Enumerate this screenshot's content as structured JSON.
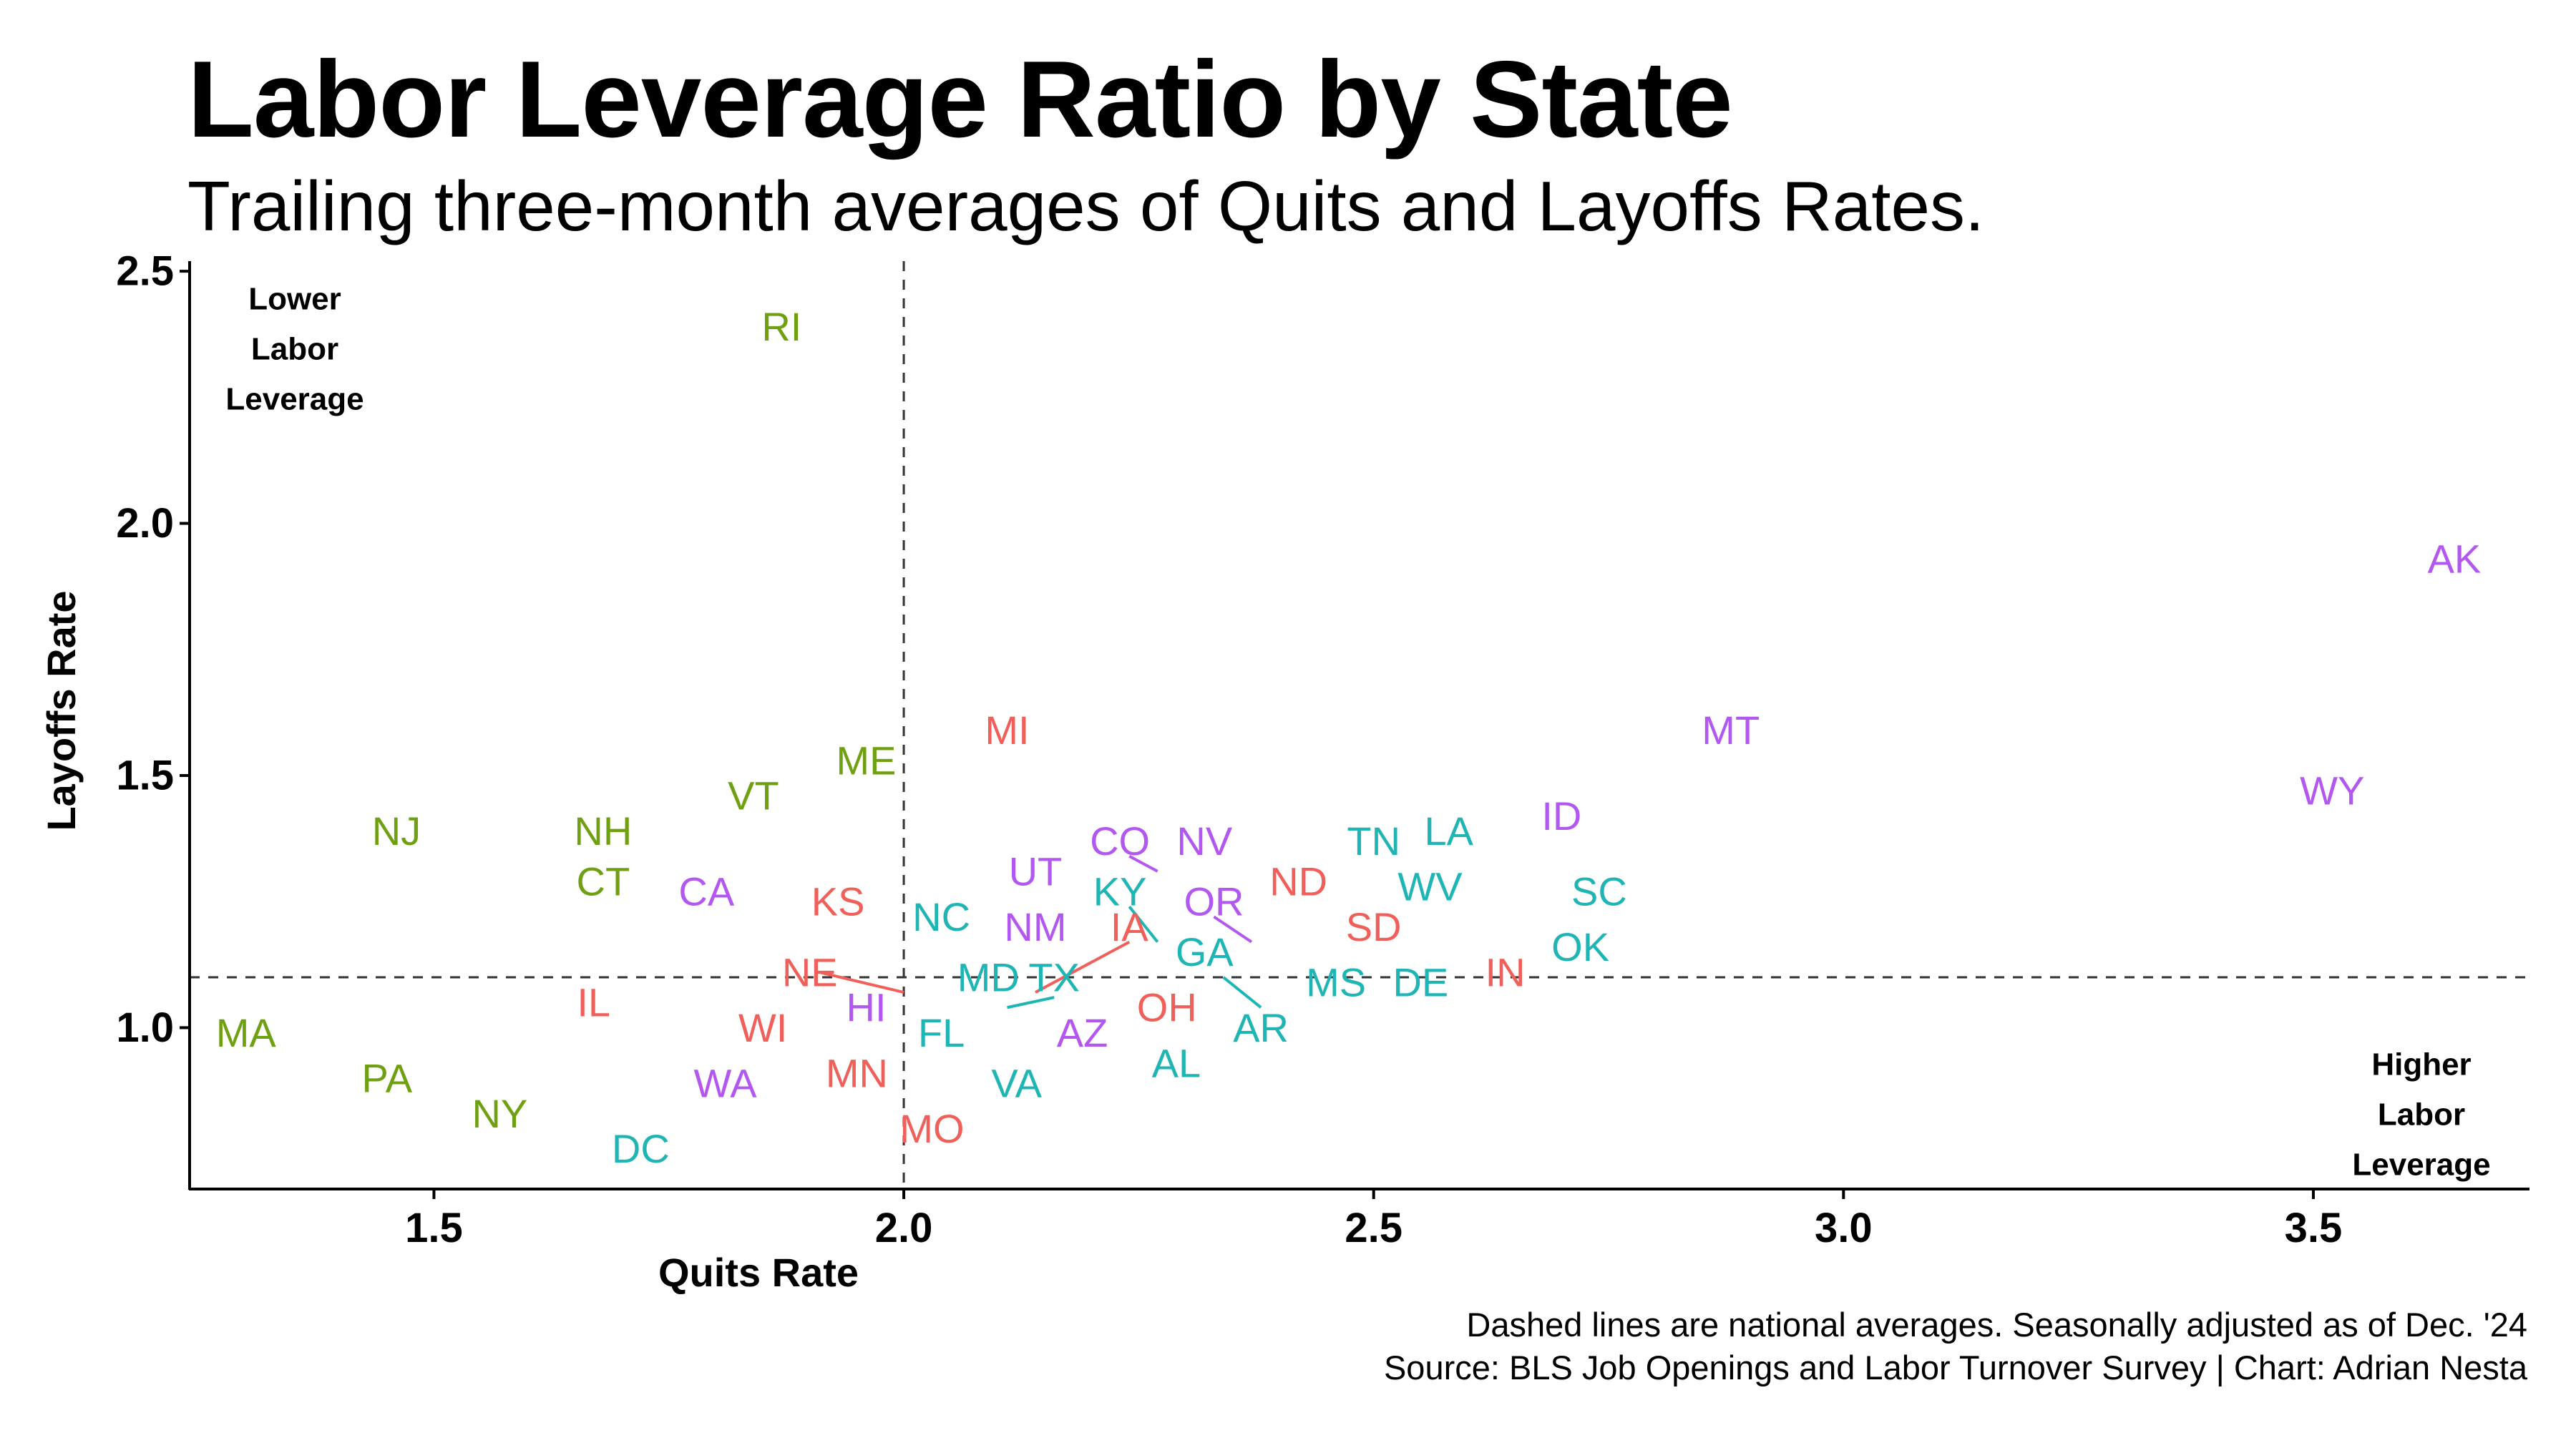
{
  "title": "Labor Leverage Ratio by State",
  "subtitle": "Trailing three-month averages of Quits and Layoffs Rates.",
  "caption": {
    "line1": "Dashed lines are national averages. Seasonally adjusted as of Dec. '24",
    "line2": "Source: BLS Job Openings and Labor Turnover Survey | Chart: Adrian Nesta"
  },
  "quadrant_labels": {
    "top_left": [
      "Lower",
      "Labor",
      "Leverage"
    ],
    "bottom_right": [
      "Higher",
      "Labor",
      "Leverage"
    ]
  },
  "colors": {
    "red": "#F0605A",
    "green": "#6FA012",
    "teal": "#1FB5B5",
    "purple": "#B258F0"
  },
  "chart_data": {
    "type": "scatter",
    "xlabel": "Quits Rate",
    "ylabel": "Layoffs Rate",
    "xlim": [
      1.24,
      3.73
    ],
    "ylim": [
      0.68,
      2.52
    ],
    "x_ticks": [
      "1.5",
      "2.0",
      "2.5",
      "3.0",
      "3.5"
    ],
    "y_ticks": [
      "1.0",
      "1.5",
      "2.0",
      "2.5"
    ],
    "reference_lines": {
      "x": 2.0,
      "y": 1.1
    },
    "points": [
      {
        "label": "RI",
        "x": 1.87,
        "y": 2.39,
        "color": "green"
      },
      {
        "label": "AK",
        "x": 3.65,
        "y": 1.93,
        "color": "purple"
      },
      {
        "label": "MI",
        "x": 2.11,
        "y": 1.59,
        "color": "red"
      },
      {
        "label": "MT",
        "x": 2.88,
        "y": 1.59,
        "color": "purple"
      },
      {
        "label": "ME",
        "x": 1.96,
        "y": 1.53,
        "color": "green"
      },
      {
        "label": "VT",
        "x": 1.84,
        "y": 1.46,
        "color": "green"
      },
      {
        "label": "WY",
        "x": 3.52,
        "y": 1.47,
        "color": "purple"
      },
      {
        "label": "ID",
        "x": 2.7,
        "y": 1.42,
        "color": "purple"
      },
      {
        "label": "NJ",
        "x": 1.46,
        "y": 1.39,
        "color": "green"
      },
      {
        "label": "NH",
        "x": 1.68,
        "y": 1.39,
        "color": "green"
      },
      {
        "label": "LA",
        "x": 2.58,
        "y": 1.39,
        "color": "teal"
      },
      {
        "label": "TN",
        "x": 2.5,
        "y": 1.37,
        "color": "teal"
      },
      {
        "label": "CO",
        "x": 2.23,
        "y": 1.37,
        "color": "purple"
      },
      {
        "label": "NV",
        "x": 2.32,
        "y": 1.37,
        "color": "purple"
      },
      {
        "label": "CT",
        "x": 1.68,
        "y": 1.29,
        "color": "green"
      },
      {
        "label": "ND",
        "x": 2.42,
        "y": 1.29,
        "color": "red"
      },
      {
        "label": "WV",
        "x": 2.56,
        "y": 1.28,
        "color": "teal"
      },
      {
        "label": "SC",
        "x": 2.74,
        "y": 1.27,
        "color": "teal"
      },
      {
        "label": "UT",
        "x": 2.14,
        "y": 1.31,
        "color": "purple"
      },
      {
        "label": "CA",
        "x": 1.79,
        "y": 1.27,
        "color": "purple"
      },
      {
        "label": "KS",
        "x": 1.93,
        "y": 1.25,
        "color": "red"
      },
      {
        "label": "KY",
        "x": 2.23,
        "y": 1.27,
        "color": "teal"
      },
      {
        "label": "OR",
        "x": 2.33,
        "y": 1.25,
        "color": "purple"
      },
      {
        "label": "NC",
        "x": 2.04,
        "y": 1.22,
        "color": "teal"
      },
      {
        "label": "NM",
        "x": 2.14,
        "y": 1.2,
        "color": "purple"
      },
      {
        "label": "IA",
        "x": 2.24,
        "y": 1.2,
        "color": "red"
      },
      {
        "label": "SD",
        "x": 2.5,
        "y": 1.2,
        "color": "red"
      },
      {
        "label": "GA",
        "x": 2.32,
        "y": 1.15,
        "color": "teal"
      },
      {
        "label": "OK",
        "x": 2.72,
        "y": 1.16,
        "color": "teal"
      },
      {
        "label": "NE",
        "x": 1.9,
        "y": 1.11,
        "color": "red"
      },
      {
        "label": "MD",
        "x": 2.09,
        "y": 1.1,
        "color": "teal"
      },
      {
        "label": "TX",
        "x": 2.16,
        "y": 1.1,
        "color": "teal"
      },
      {
        "label": "MS",
        "x": 2.46,
        "y": 1.09,
        "color": "teal"
      },
      {
        "label": "DE",
        "x": 2.55,
        "y": 1.09,
        "color": "teal"
      },
      {
        "label": "IN",
        "x": 2.64,
        "y": 1.11,
        "color": "red"
      },
      {
        "label": "IL",
        "x": 1.67,
        "y": 1.05,
        "color": "red"
      },
      {
        "label": "HI",
        "x": 1.96,
        "y": 1.04,
        "color": "purple"
      },
      {
        "label": "OH",
        "x": 2.28,
        "y": 1.04,
        "color": "red"
      },
      {
        "label": "MA",
        "x": 1.3,
        "y": 0.99,
        "color": "green"
      },
      {
        "label": "WI",
        "x": 1.85,
        "y": 1.0,
        "color": "red"
      },
      {
        "label": "FL",
        "x": 2.04,
        "y": 0.99,
        "color": "teal"
      },
      {
        "label": "AZ",
        "x": 2.19,
        "y": 0.99,
        "color": "purple"
      },
      {
        "label": "AR",
        "x": 2.38,
        "y": 1.0,
        "color": "teal"
      },
      {
        "label": "AL",
        "x": 2.29,
        "y": 0.93,
        "color": "teal"
      },
      {
        "label": "PA",
        "x": 1.45,
        "y": 0.9,
        "color": "green"
      },
      {
        "label": "MN",
        "x": 1.95,
        "y": 0.91,
        "color": "red"
      },
      {
        "label": "WA",
        "x": 1.81,
        "y": 0.89,
        "color": "purple"
      },
      {
        "label": "VA",
        "x": 2.12,
        "y": 0.89,
        "color": "teal"
      },
      {
        "label": "NY",
        "x": 1.57,
        "y": 0.83,
        "color": "green"
      },
      {
        "label": "MO",
        "x": 2.03,
        "y": 0.8,
        "color": "red"
      },
      {
        "label": "DC",
        "x": 1.72,
        "y": 0.76,
        "color": "teal"
      }
    ],
    "connectors": [
      {
        "label": "NE",
        "color": "red",
        "from": [
          1.91,
          1.11
        ],
        "to": [
          2.0,
          1.07
        ]
      },
      {
        "label": "IA",
        "color": "red",
        "from": [
          2.24,
          1.17
        ],
        "to": [
          2.14,
          1.07
        ]
      },
      {
        "label": "TX",
        "color": "teal",
        "from": [
          2.16,
          1.06
        ],
        "to": [
          2.11,
          1.04
        ]
      },
      {
        "label": "CO",
        "color": "purple",
        "from": [
          2.24,
          1.34
        ],
        "to": [
          2.27,
          1.31
        ]
      },
      {
        "label": "KY",
        "color": "teal",
        "from": [
          2.24,
          1.24
        ],
        "to": [
          2.27,
          1.17
        ]
      },
      {
        "label": "OR",
        "color": "purple",
        "from": [
          2.33,
          1.22
        ],
        "to": [
          2.37,
          1.17
        ]
      },
      {
        "label": "AR",
        "color": "teal",
        "from": [
          2.34,
          1.1
        ],
        "to": [
          2.38,
          1.04
        ]
      }
    ]
  }
}
